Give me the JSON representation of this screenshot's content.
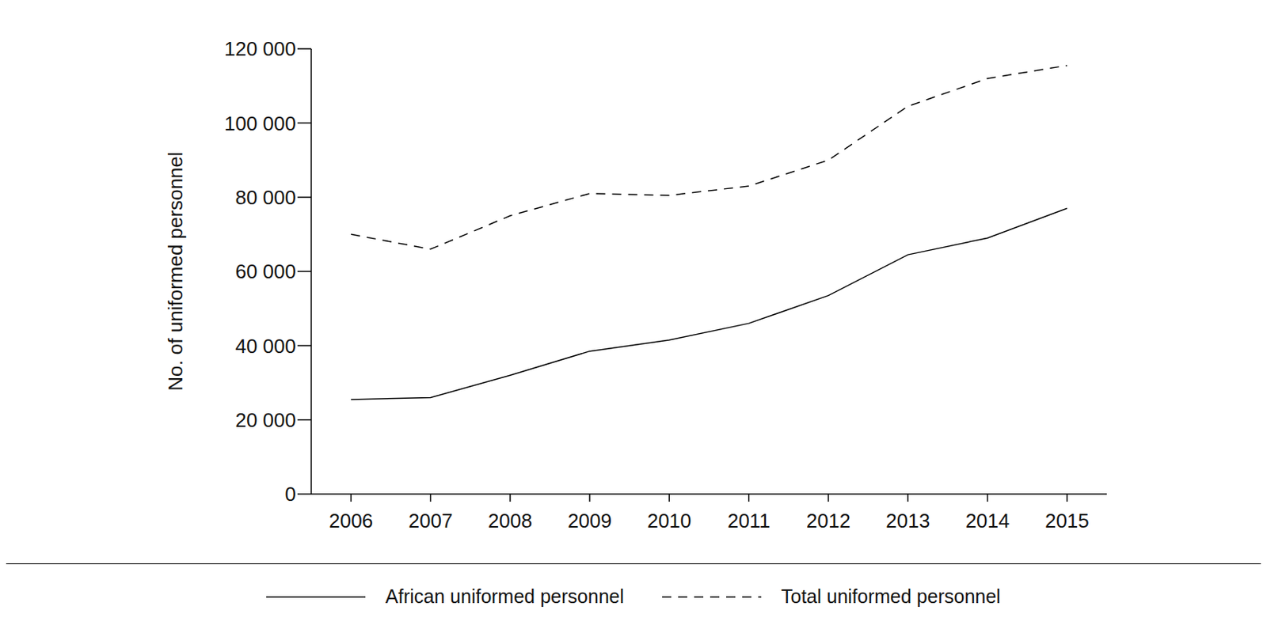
{
  "chart_data": {
    "type": "line",
    "y_label": "No. of uniformed personnel",
    "categories": [
      "2006",
      "2007",
      "2008",
      "2009",
      "2010",
      "2011",
      "2012",
      "2013",
      "2014",
      "2015"
    ],
    "series": [
      {
        "name": "African uniformed personnel",
        "color": "#000000",
        "line_style": "solid",
        "values": [
          25500,
          26000,
          32000,
          38500,
          41500,
          46000,
          53500,
          64500,
          69000,
          77000
        ]
      },
      {
        "name": "Total uniformed personnel",
        "color": "#000000",
        "line_style": "dashed",
        "values": [
          70000,
          66000,
          75000,
          81000,
          80500,
          83000,
          90000,
          104500,
          112000,
          115500
        ]
      }
    ],
    "ylim": [
      0,
      120000
    ],
    "yticks": [
      {
        "value": 0,
        "label": "0"
      },
      {
        "value": 20000,
        "label": "20 000"
      },
      {
        "value": 40000,
        "label": "40 000"
      },
      {
        "value": 60000,
        "label": "60 000"
      },
      {
        "value": 80000,
        "label": "80 000"
      },
      {
        "value": 100000,
        "label": "100 000"
      },
      {
        "value": 120000,
        "label": "120 000"
      }
    ],
    "legend": "bottom",
    "grid": false
  }
}
